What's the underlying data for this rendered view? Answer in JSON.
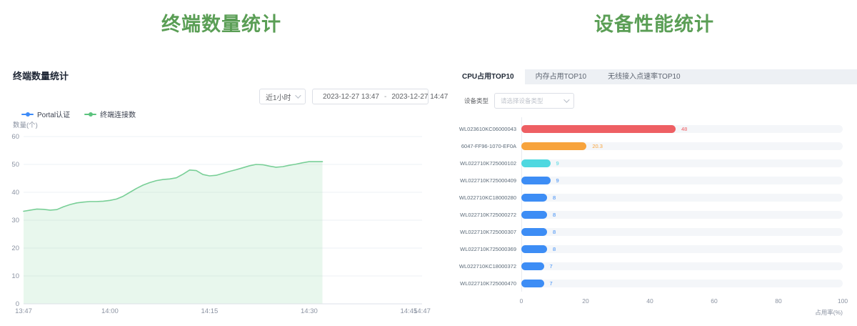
{
  "left_panel": {
    "page_title": "终端数量统计",
    "header": "终端数量统计",
    "time_range_select": {
      "value": "近1小时"
    },
    "date_range": {
      "start": "2023-12-27 13:47",
      "separator": "-",
      "end": "2023-12-27 14:47"
    },
    "legend": [
      {
        "label": "Portal认证",
        "color": "#3d8bf8"
      },
      {
        "label": "终端连接数",
        "color": "#5cc37e"
      }
    ],
    "chart_data": {
      "type": "area",
      "title": "终端数量统计",
      "ylabel": "数量(个)",
      "xlabel": "",
      "ylim": [
        0,
        60
      ],
      "y_ticks": [
        0,
        10,
        20,
        30,
        40,
        50,
        60
      ],
      "x_ticks": [
        "13:47",
        "14:00",
        "14:15",
        "14:30",
        "14:45",
        "14:47"
      ],
      "x_tick_minutes": [
        0,
        13,
        28,
        43,
        58,
        60
      ],
      "x_range_minutes": [
        0,
        60
      ],
      "grid": true,
      "legend_position": "top-left",
      "series": [
        {
          "name": "Portal认证",
          "color": "#3d8bf8",
          "points": [
            [
              0,
              0
            ],
            [
              45,
              0
            ]
          ]
        },
        {
          "name": "终端连接数",
          "color": "#79cf97",
          "area_color": "#7ed29b",
          "area_opacity": 0.18,
          "points": [
            [
              0,
              33.2
            ],
            [
              1,
              33.6
            ],
            [
              2,
              34
            ],
            [
              3,
              33.9
            ],
            [
              4,
              33.6
            ],
            [
              5,
              33.8
            ],
            [
              6,
              34.8
            ],
            [
              7,
              35.6
            ],
            [
              8,
              36.2
            ],
            [
              9,
              36.5
            ],
            [
              10,
              36.7
            ],
            [
              11,
              36.7
            ],
            [
              12,
              36.8
            ],
            [
              13,
              37.1
            ],
            [
              14,
              37.6
            ],
            [
              15,
              38.6
            ],
            [
              16,
              40
            ],
            [
              17,
              41.4
            ],
            [
              18,
              42.6
            ],
            [
              19,
              43.5
            ],
            [
              20,
              44.2
            ],
            [
              21,
              44.6
            ],
            [
              22,
              44.8
            ],
            [
              23,
              45.2
            ],
            [
              24,
              46.5
            ],
            [
              25,
              48
            ],
            [
              26,
              47.8
            ],
            [
              27,
              46.4
            ],
            [
              28,
              45.9
            ],
            [
              29,
              46.1
            ],
            [
              30,
              46.8
            ],
            [
              31,
              47.5
            ],
            [
              32,
              48.1
            ],
            [
              33,
              48.8
            ],
            [
              34,
              49.5
            ],
            [
              35,
              50
            ],
            [
              36,
              49.9
            ],
            [
              37,
              49.4
            ],
            [
              38,
              49
            ],
            [
              39,
              49.2
            ],
            [
              40,
              49.7
            ],
            [
              41,
              50.1
            ],
            [
              42,
              50.6
            ],
            [
              43,
              51
            ],
            [
              44,
              51
            ],
            [
              45,
              51
            ]
          ]
        }
      ]
    }
  },
  "right_panel": {
    "page_title": "设备性能统计",
    "tabs": [
      {
        "label": "CPU占用TOP10",
        "active": true
      },
      {
        "label": "内存占用TOP10",
        "active": false
      },
      {
        "label": "无线接入点速率TOP10",
        "active": false
      }
    ],
    "device_type": {
      "label": "设备类型",
      "placeholder": "请选择设备类型"
    },
    "chart_data": {
      "type": "bar",
      "orientation": "horizontal",
      "title": "CPU占用TOP10",
      "xlabel": "占用率(%)",
      "xlim": [
        0,
        100
      ],
      "x_ticks": [
        0,
        20,
        40,
        60,
        80,
        100
      ],
      "categories": [
        "WL023610KC06000043",
        "6047-FF96-1070-EF0A",
        "WL022710K725000102",
        "WL022710K725000409",
        "WL022710KC18000280",
        "WL022710K725000272",
        "WL022710K725000307",
        "WL022710K725000369",
        "WL022710KC18000372",
        "WL022710K725000470"
      ],
      "values": [
        48,
        20.3,
        9,
        9,
        8,
        8,
        8,
        8,
        7,
        7
      ],
      "colors": [
        "#ee5f63",
        "#f7a33c",
        "#4fd8e0",
        "#3d8df5",
        "#3d8df5",
        "#3d8df5",
        "#3d8df5",
        "#3d8df5",
        "#3d8df5",
        "#3d8df5"
      ],
      "track_color": "#f4f6f9"
    }
  }
}
